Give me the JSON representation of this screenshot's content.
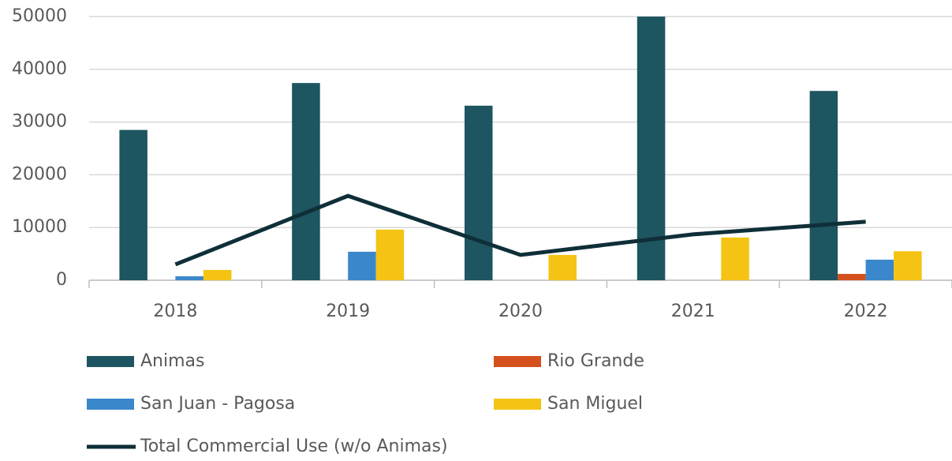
{
  "chart_data": {
    "type": "bar",
    "categories": [
      "2018",
      "2019",
      "2020",
      "2021",
      "2022"
    ],
    "series": [
      {
        "name": "Animas",
        "color": "#1d5560",
        "values": [
          28500,
          37400,
          33100,
          50000,
          35900
        ]
      },
      {
        "name": "Rio Grande",
        "color": "#d4501c",
        "values": [
          0,
          0,
          0,
          0,
          1200
        ]
      },
      {
        "name": "San Juan - Pagosa",
        "color": "#3a87cc",
        "values": [
          750,
          5400,
          0,
          0,
          3900
        ]
      },
      {
        "name": "San Miguel",
        "color": "#f5c313",
        "values": [
          1950,
          9600,
          4800,
          8100,
          5500
        ]
      },
      {
        "name": "Total Commercial Use (w/o Animas)",
        "color": "#0f2f38",
        "type": "line",
        "values": [
          3000,
          16000,
          4800,
          8700,
          11100
        ]
      }
    ],
    "ylim": [
      0,
      50000
    ],
    "yticks": [
      0,
      10000,
      20000,
      30000,
      40000,
      50000
    ],
    "grid": true,
    "legend": "bottom"
  }
}
